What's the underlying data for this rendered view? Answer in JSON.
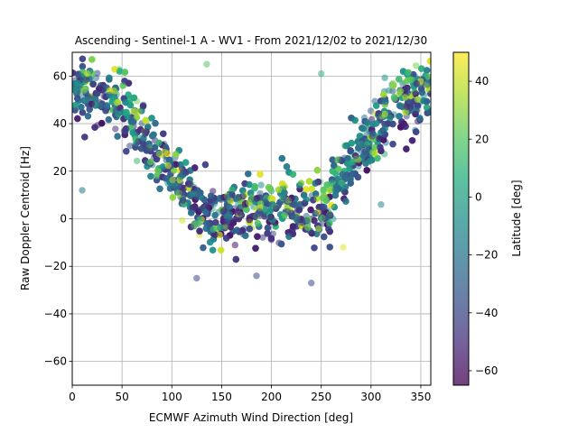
{
  "chart_data": {
    "type": "scatter",
    "title": "Ascending - Sentinel-1 A - WV1 - From 2021/12/02 to 2021/12/30",
    "xlabel": "ECMWF Azimuth Wind Direction [deg]",
    "ylabel": "Raw Doppler Centroid [Hz]",
    "xlim": [
      0,
      360
    ],
    "ylim": [
      -70,
      70
    ],
    "xticks": [
      "0",
      "50",
      "100",
      "150",
      "200",
      "250",
      "300",
      "350"
    ],
    "yticks": [
      "60",
      "40",
      "20",
      "0",
      "−20",
      "−40",
      "−60"
    ],
    "grid": true,
    "point_alpha": 0.55,
    "colorbar": {
      "label": "Latitude [deg]",
      "range": [
        -65,
        50
      ],
      "ticks": [
        "40",
        "20",
        "0",
        "−20",
        "−40",
        "−60"
      ],
      "colormap": "viridis"
    },
    "model": {
      "description_of_trend": "Doppler centroid vs azimuth wind direction; cosine-shaped with high-latitude points at high Doppler near 0/360 deg and low-latitude points near 0 Hz around 180-240 deg",
      "approx_points": 3600
    },
    "notable_points": [
      {
        "x": 135,
        "y": 65,
        "lat": 20
      },
      {
        "x": 250,
        "y": 61,
        "lat": 10
      },
      {
        "x": 240,
        "y": -27,
        "lat": -40
      },
      {
        "x": 185,
        "y": -24,
        "lat": -40
      },
      {
        "x": 125,
        "y": -25,
        "lat": -40
      },
      {
        "x": 272,
        "y": -12,
        "lat": 45
      },
      {
        "x": 10,
        "y": 12,
        "lat": -20
      },
      {
        "x": 310,
        "y": 6,
        "lat": -10
      }
    ]
  }
}
